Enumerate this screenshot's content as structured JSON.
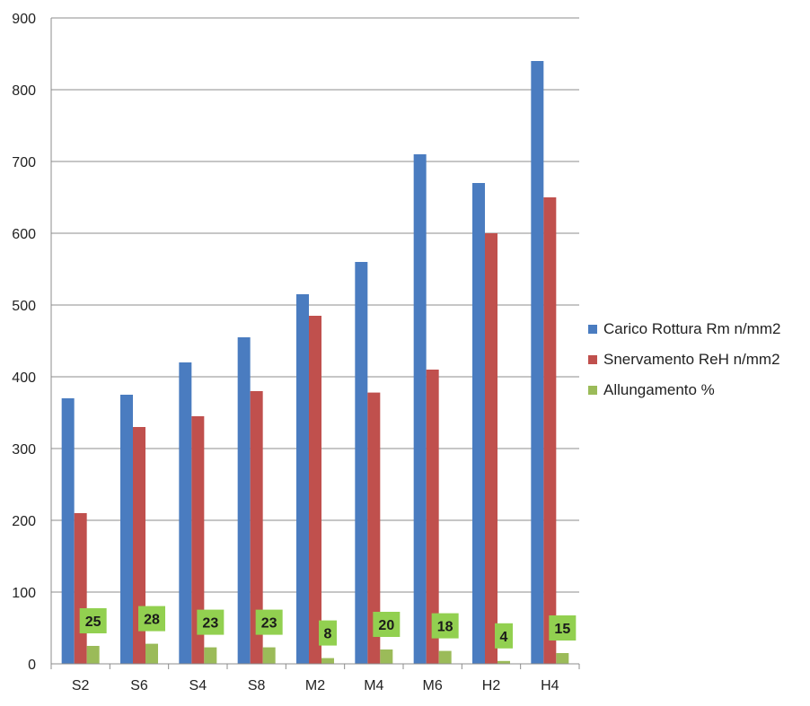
{
  "chart_data": {
    "type": "bar",
    "title": "",
    "xlabel": "",
    "ylabel": "",
    "ylim": [
      0,
      900
    ],
    "yticks": [
      0,
      100,
      200,
      300,
      400,
      500,
      600,
      700,
      800,
      900
    ],
    "grid": true,
    "legend_position": "right",
    "categories": [
      "S2",
      "S6",
      "S4",
      "S8",
      "M2",
      "M4",
      "M6",
      "H2",
      "H4"
    ],
    "series": [
      {
        "name": "Carico Rottura  Rm n/mm2",
        "color": "#4a7cc0",
        "values": [
          370,
          375,
          420,
          455,
          515,
          560,
          710,
          670,
          840
        ]
      },
      {
        "name": "Snervamento  ReH n/mm2",
        "color": "#c0504d",
        "values": [
          210,
          330,
          345,
          380,
          485,
          378,
          410,
          600,
          650
        ]
      },
      {
        "name": "Allungamento  %",
        "color": "#9bbb59",
        "values": [
          25,
          28,
          23,
          23,
          8,
          20,
          18,
          4,
          15
        ],
        "data_labels": [
          "25",
          "28",
          "23",
          "23",
          "8",
          "20",
          "18",
          "4",
          "15"
        ],
        "label_color": "#92d050"
      }
    ]
  }
}
